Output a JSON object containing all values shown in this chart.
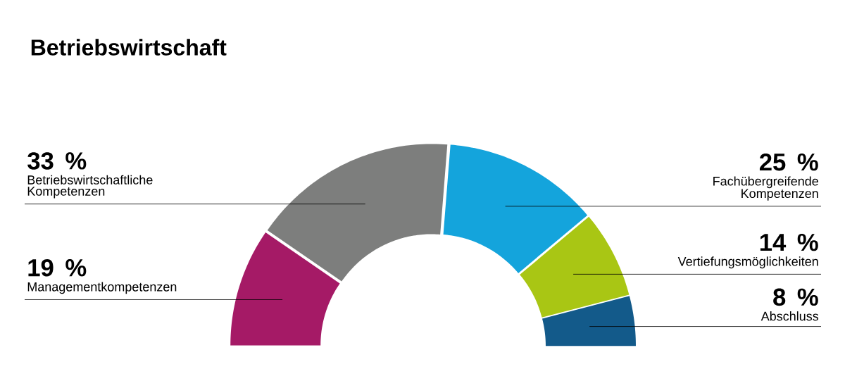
{
  "chart_data": {
    "type": "donut",
    "title": "Betriebswirtschaft",
    "categories": [
      "Managementkompetenzen",
      "Betriebswirtschaftliche Kompetenzen",
      "Fachübergreifende Kompetenzen",
      "Vertiefungsmöglichkeiten",
      "Abschluss"
    ],
    "values": [
      19,
      33,
      25,
      14,
      8
    ],
    "colors": [
      "#a51a66",
      "#7d7e7d",
      "#14a4dc",
      "#a9c614",
      "#135a8a"
    ],
    "value_labels": [
      "19 %",
      "33 %",
      "25 %",
      "14 %",
      "8 %"
    ]
  }
}
